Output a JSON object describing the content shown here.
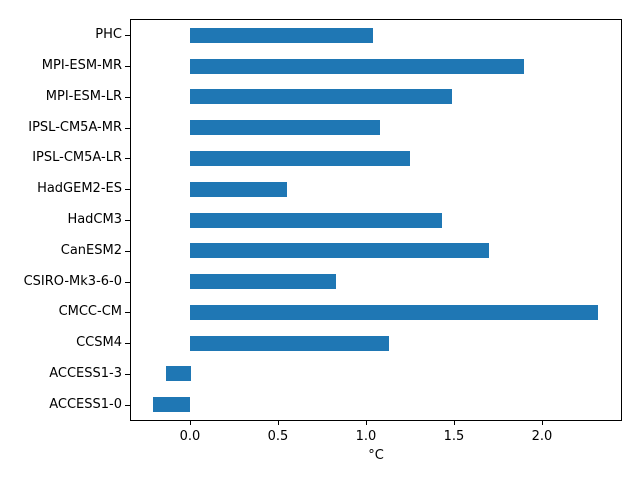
{
  "figure": {
    "background": "#ffffff",
    "bar_color": "#1f77b4",
    "spine_color": "#000000",
    "text_color": "#000000"
  },
  "chart_data": {
    "type": "bar",
    "orientation": "horizontal",
    "title": "",
    "xlabel": "°C",
    "ylabel": "",
    "categories": [
      "PHC",
      "MPI-ESM-MR",
      "MPI-ESM-LR",
      "IPSL-CM5A-MR",
      "IPSL-CM5A-LR",
      "HadGEM2-ES",
      "HadCM3",
      "CanESM2",
      "CSIRO-Mk3-6-0",
      "CMCC-CM",
      "CCSM4",
      "ACCESS1-3",
      "ACCESS1-0"
    ],
    "categories_order": "top-to-bottom",
    "values": [
      1.04,
      1.9,
      1.49,
      1.08,
      1.25,
      0.55,
      1.43,
      1.7,
      0.83,
      2.32,
      1.13,
      -0.14,
      -0.21
    ],
    "x_ticks": [
      0.0,
      0.5,
      1.0,
      1.5,
      2.0
    ],
    "x_tick_labels": [
      "0.0",
      "0.5",
      "1.0",
      "1.5",
      "2.0"
    ],
    "xlim": [
      -0.337,
      2.447
    ],
    "grid": false,
    "legend": null,
    "bar_height_fraction": 0.5
  }
}
